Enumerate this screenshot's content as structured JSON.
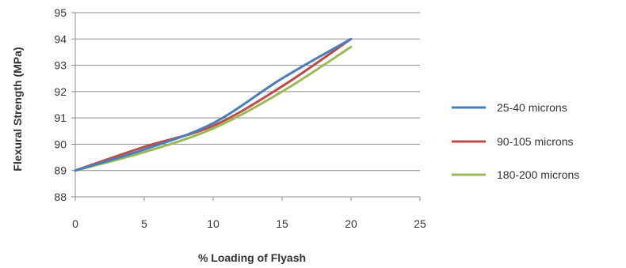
{
  "chart_data": {
    "type": "line",
    "xlabel": "% Loading of Flyash",
    "ylabel": "Flexural Strength (MPa)",
    "xlim": [
      0,
      25
    ],
    "ylim": [
      88,
      95
    ],
    "x_ticks": [
      0,
      5,
      10,
      15,
      20,
      25
    ],
    "y_ticks": [
      88,
      89,
      90,
      91,
      92,
      93,
      94,
      95
    ],
    "grid": "horizontal",
    "legend_position": "right",
    "x": [
      0,
      5,
      10,
      15,
      20
    ],
    "series": [
      {
        "name": "25-40 microns",
        "color": "#4a7ebb",
        "values": [
          89.0,
          89.8,
          90.8,
          92.5,
          94.0
        ]
      },
      {
        "name": "90-105 microns",
        "color": "#be4b48",
        "values": [
          89.0,
          89.9,
          90.7,
          92.2,
          94.0
        ]
      },
      {
        "name": "180-200 microns",
        "color": "#98b954",
        "values": [
          89.0,
          89.7,
          90.6,
          92.0,
          93.7
        ]
      }
    ]
  }
}
